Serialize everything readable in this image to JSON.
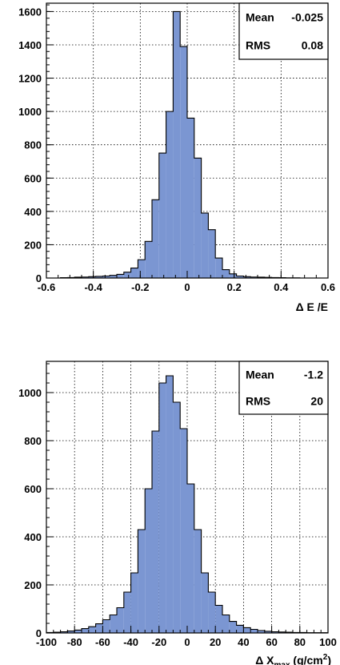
{
  "chart_data": [
    {
      "type": "bar",
      "title": "",
      "xlabel": "Δ E /E",
      "ylabel": "",
      "xlim": [
        -0.6,
        0.6
      ],
      "ylim": [
        0,
        1650
      ],
      "grid": true,
      "xticks": [
        -0.6,
        -0.4,
        -0.2,
        0,
        0.2,
        0.4,
        0.6
      ],
      "yticks": [
        0,
        200,
        400,
        600,
        800,
        1000,
        1200,
        1400,
        1600
      ],
      "xtick_labels": [
        "-0.6",
        "-0.4",
        "-0.2",
        "0",
        "0.2",
        "0.4",
        "0.6"
      ],
      "ytick_labels": [
        "0",
        "200",
        "400",
        "600",
        "800",
        "1000",
        "1200",
        "1400",
        "1600"
      ],
      "bin_width": 0.03,
      "bin_edges_start": -0.6,
      "values": [
        0,
        0,
        2,
        3,
        5,
        6,
        8,
        10,
        12,
        16,
        22,
        35,
        60,
        110,
        220,
        470,
        750,
        1000,
        1600,
        1390,
        960,
        720,
        390,
        290,
        120,
        50,
        25,
        12,
        8,
        6,
        5,
        4,
        3,
        2,
        1,
        1,
        0,
        0,
        0,
        0
      ],
      "stats": [
        {
          "label": "Mean",
          "value": "-0.025"
        },
        {
          "label": "RMS",
          "value": "0.08"
        }
      ],
      "legend_position": "top-right"
    },
    {
      "type": "bar",
      "title": "",
      "xlabel_main": "Δ X",
      "xlabel_sub": "max",
      "xlabel_unit": " (g/cm",
      "xlabel_sup": "2",
      "xlabel_close": ")",
      "ylabel": "",
      "xlim": [
        -100,
        100
      ],
      "ylim": [
        0,
        1130
      ],
      "grid": true,
      "xticks": [
        -100,
        -80,
        -60,
        -40,
        -20,
        0,
        20,
        40,
        60,
        80,
        100
      ],
      "yticks": [
        0,
        200,
        400,
        600,
        800,
        1000
      ],
      "xtick_labels": [
        "-100",
        "-80",
        "-60",
        "-40",
        "-20",
        "0",
        "20",
        "40",
        "60",
        "80",
        "100"
      ],
      "ytick_labels": [
        "0",
        "200",
        "400",
        "600",
        "800",
        "1000"
      ],
      "bin_width": 5,
      "bin_edges_start": -100,
      "values": [
        2,
        3,
        5,
        8,
        12,
        18,
        26,
        38,
        55,
        75,
        105,
        170,
        250,
        430,
        600,
        840,
        1040,
        1070,
        960,
        850,
        620,
        430,
        250,
        170,
        115,
        75,
        48,
        32,
        22,
        15,
        10,
        7,
        5,
        4,
        3,
        2,
        2,
        1,
        1,
        1
      ],
      "stats": [
        {
          "label": "Mean",
          "value": "-1.2"
        },
        {
          "label": "RMS",
          "value": "20"
        }
      ],
      "legend_position": "top-right"
    }
  ],
  "colors": {
    "fill": "#7b96d2",
    "outline": "#000000"
  }
}
